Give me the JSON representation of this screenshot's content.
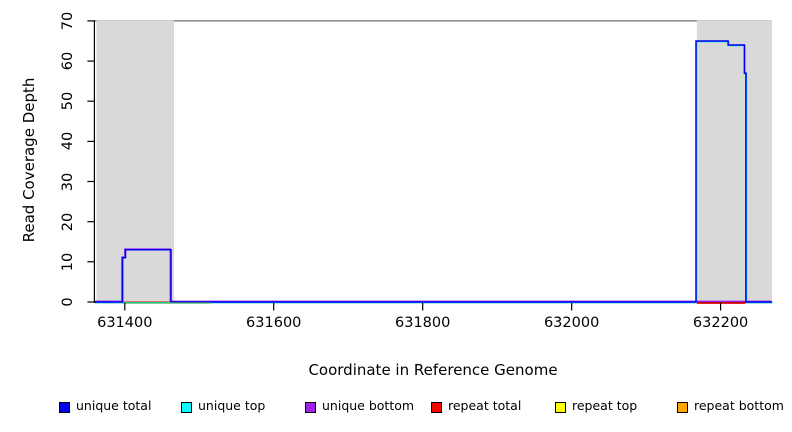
{
  "chart_data": {
    "type": "line",
    "subtype": "step-coverage-plot",
    "title": "",
    "xlabel": "Coordinate in Reference Genome",
    "ylabel": "Read Coverage Depth",
    "xlim": [
      631360,
      632269
    ],
    "ylim": [
      0,
      70
    ],
    "xticks": [
      631400,
      631600,
      631800,
      632000,
      632200
    ],
    "yticks": [
      0,
      10,
      20,
      30,
      40,
      50,
      60,
      70
    ],
    "grid": false,
    "legend_position": "bottom",
    "top_boundary_line": {
      "y": 70,
      "color": "#6e6e6e"
    },
    "highlight_regions": [
      {
        "x_start": 631362,
        "x_end": 631466,
        "color": "#d9d9d9"
      },
      {
        "x_start": 632168,
        "x_end": 632269,
        "color": "#d9d9d9"
      }
    ],
    "series": [
      {
        "name": "unique total",
        "color": "#0000ee",
        "steps": [
          [
            631360,
            0
          ],
          [
            631397,
            11
          ],
          [
            631401,
            13
          ],
          [
            631462,
            0
          ],
          [
            632167,
            65
          ],
          [
            632210,
            64
          ],
          [
            632232,
            57
          ],
          [
            632234,
            0
          ],
          [
            632269,
            0
          ]
        ]
      },
      {
        "name": "unique top",
        "color": "#00e5ee",
        "steps": [
          [
            631360,
            0
          ],
          [
            632167,
            65
          ],
          [
            632210,
            64
          ],
          [
            632232,
            57
          ],
          [
            632234,
            0
          ],
          [
            632269,
            0
          ]
        ]
      },
      {
        "name": "unique bottom",
        "color": "#a020f0",
        "steps": [
          [
            631360,
            0
          ],
          [
            631397,
            11
          ],
          [
            631401,
            13
          ],
          [
            631462,
            0
          ],
          [
            632269,
            0
          ]
        ]
      },
      {
        "name": "repeat total",
        "color": "#ee0000",
        "steps": [
          [
            631360,
            0
          ],
          [
            632269,
            0
          ]
        ]
      },
      {
        "name": "repeat top",
        "color": "#ffff00",
        "steps": [
          [
            631360,
            0
          ],
          [
            632269,
            0
          ]
        ]
      },
      {
        "name": "repeat bottom",
        "color": "#ffa500",
        "steps": [
          [
            631360,
            0
          ],
          [
            632269,
            0
          ]
        ]
      }
    ],
    "visible_zero_segments": [
      {
        "color": "#3cb054",
        "x_start": 631398,
        "x_end": 631515,
        "y": 0
      },
      {
        "color": "#ee2222",
        "x_start": 632168,
        "x_end": 632233,
        "y": 0
      }
    ],
    "legend": {
      "items": [
        {
          "label": "unique total",
          "color": "#0000ee"
        },
        {
          "label": "unique top",
          "color": "#00ffff"
        },
        {
          "label": "unique bottom",
          "color": "#a020f0"
        },
        {
          "label": "repeat total",
          "color": "#ff0000"
        },
        {
          "label": "repeat top",
          "color": "#ffff00"
        },
        {
          "label": "repeat bottom",
          "color": "#ffa500"
        }
      ]
    }
  }
}
